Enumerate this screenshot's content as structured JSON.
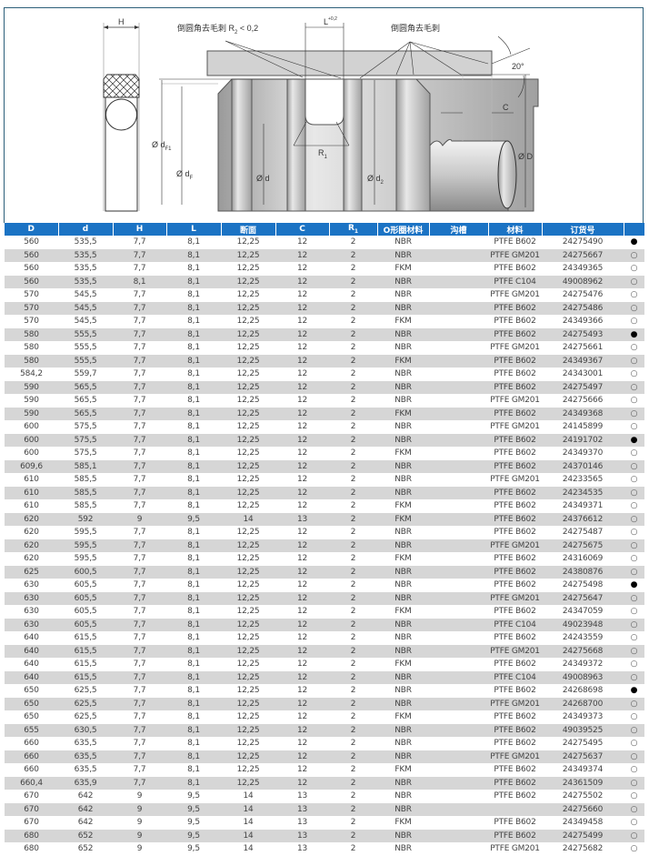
{
  "drawing": {
    "labels": {
      "H": "H",
      "L": "L",
      "L_tol": "+0,2",
      "deburr_r2": "倒圆角去毛刺 R",
      "r2_sub": "2",
      "r2_cond": " < 0,2",
      "deburr": "倒圆角去毛刺",
      "angle": "20°",
      "C": "C",
      "dF1": "Ø d",
      "dF1_sub": "F1",
      "dF": "Ø d",
      "dF_sub": "F",
      "d": "Ø d",
      "d2": "Ø d",
      "d2_sub": "2",
      "R1": "R",
      "R1_sub": "1",
      "D": "Ø D"
    }
  },
  "table": {
    "header_color": "#1b73c4",
    "columns": [
      "D",
      "d",
      "H",
      "L",
      "断面",
      "C",
      "R1",
      "O形圈材料",
      "沟槽",
      "材料",
      "订货号",
      ""
    ],
    "rows": [
      [
        "560",
        "535,5",
        "7,7",
        "8,1",
        "12,25",
        "12",
        "2",
        "NBR",
        "",
        "PTFE B602",
        "24275490",
        "filled"
      ],
      [
        "560",
        "535,5",
        "7,7",
        "8,1",
        "12,25",
        "12",
        "2",
        "NBR",
        "",
        "PTFE GM201",
        "24275667",
        "open"
      ],
      [
        "560",
        "535,5",
        "7,7",
        "8,1",
        "12,25",
        "12",
        "2",
        "FKM",
        "",
        "PTFE B602",
        "24349365",
        "open"
      ],
      [
        "560",
        "535,5",
        "8,1",
        "8,1",
        "12,25",
        "12",
        "2",
        "NBR",
        "",
        "PTFE C104",
        "49008962",
        "open"
      ],
      [
        "570",
        "545,5",
        "7,7",
        "8,1",
        "12,25",
        "12",
        "2",
        "NBR",
        "",
        "PTFE GM201",
        "24275476",
        "open"
      ],
      [
        "570",
        "545,5",
        "7,7",
        "8,1",
        "12,25",
        "12",
        "2",
        "NBR",
        "",
        "PTFE B602",
        "24275486",
        "open"
      ],
      [
        "570",
        "545,5",
        "7,7",
        "8,1",
        "12,25",
        "12",
        "2",
        "FKM",
        "",
        "PTFE B602",
        "24349366",
        "open"
      ],
      [
        "580",
        "555,5",
        "7,7",
        "8,1",
        "12,25",
        "12",
        "2",
        "NBR",
        "",
        "PTFE B602",
        "24275493",
        "filled"
      ],
      [
        "580",
        "555,5",
        "7,7",
        "8,1",
        "12,25",
        "12",
        "2",
        "NBR",
        "",
        "PTFE GM201",
        "24275661",
        "open"
      ],
      [
        "580",
        "555,5",
        "7,7",
        "8,1",
        "12,25",
        "12",
        "2",
        "FKM",
        "",
        "PTFE B602",
        "24349367",
        "open"
      ],
      [
        "584,2",
        "559,7",
        "7,7",
        "8,1",
        "12,25",
        "12",
        "2",
        "NBR",
        "",
        "PTFE B602",
        "24343001",
        "open"
      ],
      [
        "590",
        "565,5",
        "7,7",
        "8,1",
        "12,25",
        "12",
        "2",
        "NBR",
        "",
        "PTFE B602",
        "24275497",
        "open"
      ],
      [
        "590",
        "565,5",
        "7,7",
        "8,1",
        "12,25",
        "12",
        "2",
        "NBR",
        "",
        "PTFE GM201",
        "24275666",
        "open"
      ],
      [
        "590",
        "565,5",
        "7,7",
        "8,1",
        "12,25",
        "12",
        "2",
        "FKM",
        "",
        "PTFE B602",
        "24349368",
        "open"
      ],
      [
        "600",
        "575,5",
        "7,7",
        "8,1",
        "12,25",
        "12",
        "2",
        "NBR",
        "",
        "PTFE GM201",
        "24145899",
        "open"
      ],
      [
        "600",
        "575,5",
        "7,7",
        "8,1",
        "12,25",
        "12",
        "2",
        "NBR",
        "",
        "PTFE B602",
        "24191702",
        "filled"
      ],
      [
        "600",
        "575,5",
        "7,7",
        "8,1",
        "12,25",
        "12",
        "2",
        "FKM",
        "",
        "PTFE B602",
        "24349370",
        "open"
      ],
      [
        "609,6",
        "585,1",
        "7,7",
        "8,1",
        "12,25",
        "12",
        "2",
        "NBR",
        "",
        "PTFE B602",
        "24370146",
        "open"
      ],
      [
        "610",
        "585,5",
        "7,7",
        "8,1",
        "12,25",
        "12",
        "2",
        "NBR",
        "",
        "PTFE GM201",
        "24233565",
        "open"
      ],
      [
        "610",
        "585,5",
        "7,7",
        "8,1",
        "12,25",
        "12",
        "2",
        "NBR",
        "",
        "PTFE B602",
        "24234535",
        "open"
      ],
      [
        "610",
        "585,5",
        "7,7",
        "8,1",
        "12,25",
        "12",
        "2",
        "FKM",
        "",
        "PTFE B602",
        "24349371",
        "open"
      ],
      [
        "620",
        "592",
        "9",
        "9,5",
        "14",
        "13",
        "2",
        "FKM",
        "",
        "PTFE B602",
        "24376612",
        "open"
      ],
      [
        "620",
        "595,5",
        "7,7",
        "8,1",
        "12,25",
        "12",
        "2",
        "NBR",
        "",
        "PTFE B602",
        "24275487",
        "open"
      ],
      [
        "620",
        "595,5",
        "7,7",
        "8,1",
        "12,25",
        "12",
        "2",
        "NBR",
        "",
        "PTFE GM201",
        "24275675",
        "open"
      ],
      [
        "620",
        "595,5",
        "7,7",
        "8,1",
        "12,25",
        "12",
        "2",
        "FKM",
        "",
        "PTFE B602",
        "24316069",
        "open"
      ],
      [
        "625",
        "600,5",
        "7,7",
        "8,1",
        "12,25",
        "12",
        "2",
        "NBR",
        "",
        "PTFE B602",
        "24380876",
        "open"
      ],
      [
        "630",
        "605,5",
        "7,7",
        "8,1",
        "12,25",
        "12",
        "2",
        "NBR",
        "",
        "PTFE B602",
        "24275498",
        "filled"
      ],
      [
        "630",
        "605,5",
        "7,7",
        "8,1",
        "12,25",
        "12",
        "2",
        "NBR",
        "",
        "PTFE GM201",
        "24275647",
        "open"
      ],
      [
        "630",
        "605,5",
        "7,7",
        "8,1",
        "12,25",
        "12",
        "2",
        "FKM",
        "",
        "PTFE B602",
        "24347059",
        "open"
      ],
      [
        "630",
        "605,5",
        "7,7",
        "8,1",
        "12,25",
        "12",
        "2",
        "NBR",
        "",
        "PTFE C104",
        "49023948",
        "open"
      ],
      [
        "640",
        "615,5",
        "7,7",
        "8,1",
        "12,25",
        "12",
        "2",
        "NBR",
        "",
        "PTFE B602",
        "24243559",
        "open"
      ],
      [
        "640",
        "615,5",
        "7,7",
        "8,1",
        "12,25",
        "12",
        "2",
        "NBR",
        "",
        "PTFE GM201",
        "24275668",
        "open"
      ],
      [
        "640",
        "615,5",
        "7,7",
        "8,1",
        "12,25",
        "12",
        "2",
        "FKM",
        "",
        "PTFE B602",
        "24349372",
        "open"
      ],
      [
        "640",
        "615,5",
        "7,7",
        "8,1",
        "12,25",
        "12",
        "2",
        "NBR",
        "",
        "PTFE C104",
        "49008963",
        "open"
      ],
      [
        "650",
        "625,5",
        "7,7",
        "8,1",
        "12,25",
        "12",
        "2",
        "NBR",
        "",
        "PTFE B602",
        "24268698",
        "filled"
      ],
      [
        "650",
        "625,5",
        "7,7",
        "8,1",
        "12,25",
        "12",
        "2",
        "NBR",
        "",
        "PTFE GM201",
        "24268700",
        "open"
      ],
      [
        "650",
        "625,5",
        "7,7",
        "8,1",
        "12,25",
        "12",
        "2",
        "FKM",
        "",
        "PTFE B602",
        "24349373",
        "open"
      ],
      [
        "655",
        "630,5",
        "7,7",
        "8,1",
        "12,25",
        "12",
        "2",
        "NBR",
        "",
        "PTFE B602",
        "49039525",
        "open"
      ],
      [
        "660",
        "635,5",
        "7,7",
        "8,1",
        "12,25",
        "12",
        "2",
        "NBR",
        "",
        "PTFE B602",
        "24275495",
        "open"
      ],
      [
        "660",
        "635,5",
        "7,7",
        "8,1",
        "12,25",
        "12",
        "2",
        "NBR",
        "",
        "PTFE GM201",
        "24275637",
        "open"
      ],
      [
        "660",
        "635,5",
        "7,7",
        "8,1",
        "12,25",
        "12",
        "2",
        "FKM",
        "",
        "PTFE B602",
        "24349374",
        "open"
      ],
      [
        "660,4",
        "635,9",
        "7,7",
        "8,1",
        "12,25",
        "12",
        "2",
        "NBR",
        "",
        "PTFE B602",
        "24361509",
        "open"
      ],
      [
        "670",
        "642",
        "9",
        "9,5",
        "14",
        "13",
        "2",
        "NBR",
        "",
        "PTFE B602",
        "24275502",
        "open"
      ],
      [
        "670",
        "642",
        "9",
        "9,5",
        "14",
        "13",
        "2",
        "NBR",
        "",
        "",
        "24275660",
        "open"
      ],
      [
        "670",
        "642",
        "9",
        "9,5",
        "14",
        "13",
        "2",
        "FKM",
        "",
        "PTFE B602",
        "24349458",
        "open"
      ],
      [
        "680",
        "652",
        "9",
        "9,5",
        "14",
        "13",
        "2",
        "NBR",
        "",
        "PTFE B602",
        "24275499",
        "open"
      ],
      [
        "680",
        "652",
        "9",
        "9,5",
        "14",
        "13",
        "2",
        "NBR",
        "",
        "PTFE GM201",
        "24275682",
        "open"
      ],
      [
        "680",
        "652",
        "9",
        "9,5",
        "14",
        "13",
        "2",
        "FKM",
        "",
        "PTFE B602",
        "24349459",
        "open"
      ]
    ]
  }
}
